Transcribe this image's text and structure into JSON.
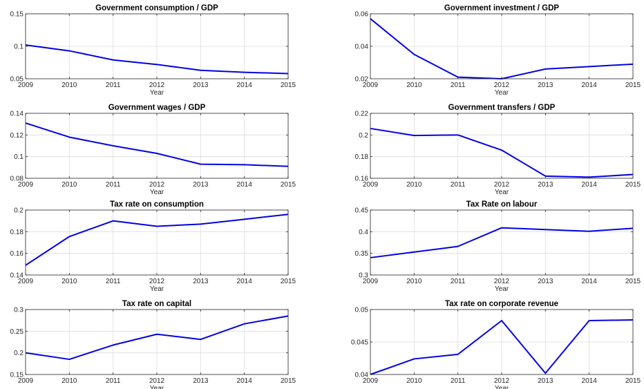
{
  "figure": {
    "line_color": "#0000e6",
    "grid_color": "#dcdcdc"
  },
  "chart_data": [
    {
      "type": "line",
      "title": "Government consumption / GDP",
      "xlabel": "Year",
      "ylabel": "",
      "x": [
        2009,
        2010,
        2011,
        2012,
        2013,
        2014,
        2015
      ],
      "xlim": [
        2009,
        2015
      ],
      "ylim": [
        0.05,
        0.15
      ],
      "yticks": [
        0.05,
        0.1,
        0.15
      ],
      "yticklabels": [
        "0.05",
        "0.1",
        "0.15"
      ],
      "values": [
        0.102,
        0.093,
        0.079,
        0.072,
        0.063,
        0.06,
        0.058
      ],
      "grid": true
    },
    {
      "type": "line",
      "title": "Government investment / GDP",
      "xlabel": "Year",
      "ylabel": "",
      "x": [
        2009,
        2010,
        2011,
        2012,
        2013,
        2014,
        2015
      ],
      "xlim": [
        2009,
        2015
      ],
      "ylim": [
        0.02,
        0.06
      ],
      "yticks": [
        0.02,
        0.04,
        0.06
      ],
      "yticklabels": [
        "0.02",
        "0.04",
        "0.06"
      ],
      "values": [
        0.057,
        0.035,
        0.021,
        0.02,
        0.026,
        0.0275,
        0.029
      ],
      "grid": true
    },
    {
      "type": "line",
      "title": "Government wages / GDP",
      "xlabel": "Year",
      "ylabel": "",
      "x": [
        2009,
        2010,
        2011,
        2012,
        2013,
        2014,
        2015
      ],
      "xlim": [
        2009,
        2015
      ],
      "ylim": [
        0.08,
        0.14
      ],
      "yticks": [
        0.08,
        0.1,
        0.12,
        0.14
      ],
      "yticklabels": [
        "0.08",
        "0.1",
        "0.12",
        "0.14"
      ],
      "values": [
        0.131,
        0.118,
        0.11,
        0.103,
        0.093,
        0.0925,
        0.091
      ],
      "grid": true
    },
    {
      "type": "line",
      "title": "Government transfers / GDP",
      "xlabel": "Year",
      "ylabel": "",
      "x": [
        2009,
        2010,
        2011,
        2012,
        2013,
        2014,
        2015
      ],
      "xlim": [
        2009,
        2015
      ],
      "ylim": [
        0.16,
        0.22
      ],
      "yticks": [
        0.16,
        0.18,
        0.2,
        0.22
      ],
      "yticklabels": [
        "0.16",
        "0.18",
        "0.2",
        "0.22"
      ],
      "values": [
        0.206,
        0.1995,
        0.2,
        0.186,
        0.162,
        0.161,
        0.1635
      ],
      "grid": true
    },
    {
      "type": "line",
      "title": "Tax rate on consumption",
      "xlabel": "Year",
      "ylabel": "",
      "x": [
        2009,
        2010,
        2011,
        2012,
        2013,
        2014,
        2015
      ],
      "xlim": [
        2009,
        2015
      ],
      "ylim": [
        0.14,
        0.2
      ],
      "yticks": [
        0.14,
        0.16,
        0.18,
        0.2
      ],
      "yticklabels": [
        "0.14",
        "0.16",
        "0.18",
        "0.2"
      ],
      "values": [
        0.149,
        0.1755,
        0.19,
        0.185,
        0.187,
        0.1915,
        0.196
      ],
      "grid": true
    },
    {
      "type": "line",
      "title": "Tax Rate on labour",
      "xlabel": "Year",
      "ylabel": "",
      "x": [
        2009,
        2010,
        2011,
        2012,
        2013,
        2014,
        2015
      ],
      "xlim": [
        2009,
        2015
      ],
      "ylim": [
        0.3,
        0.45
      ],
      "yticks": [
        0.3,
        0.35,
        0.4,
        0.45
      ],
      "yticklabels": [
        "0.3",
        "0.35",
        "0.4",
        "0.45"
      ],
      "values": [
        0.34,
        0.353,
        0.366,
        0.409,
        0.405,
        0.401,
        0.408
      ],
      "grid": true
    },
    {
      "type": "line",
      "title": "Tax rate on capital",
      "xlabel": "Year",
      "ylabel": "",
      "x": [
        2009,
        2010,
        2011,
        2012,
        2013,
        2014,
        2015
      ],
      "xlim": [
        2009,
        2015
      ],
      "ylim": [
        0.15,
        0.3
      ],
      "yticks": [
        0.15,
        0.2,
        0.25,
        0.3
      ],
      "yticklabels": [
        "0.15",
        "0.2",
        "0.25",
        "0.3"
      ],
      "values": [
        0.2,
        0.185,
        0.218,
        0.243,
        0.231,
        0.267,
        0.285
      ],
      "grid": true
    },
    {
      "type": "line",
      "title": "Tax rate on corporate revenue",
      "xlabel": "Year",
      "ylabel": "",
      "x": [
        2009,
        2010,
        2011,
        2012,
        2013,
        2014,
        2015
      ],
      "xlim": [
        2009,
        2015
      ],
      "ylim": [
        0.04,
        0.05
      ],
      "yticks": [
        0.04,
        0.045,
        0.05
      ],
      "yticklabels": [
        "0.04",
        "0.045",
        "0.05"
      ],
      "values": [
        0.04,
        0.0424,
        0.0431,
        0.0483,
        0.0402,
        0.0483,
        0.0484
      ],
      "grid": true
    }
  ]
}
